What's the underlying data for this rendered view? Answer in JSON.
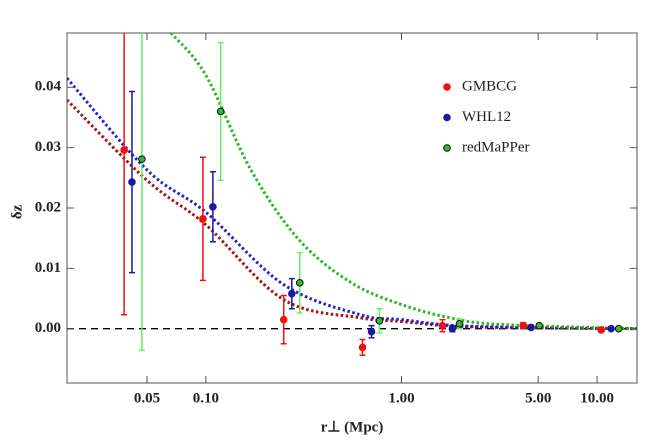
{
  "chart_data": {
    "type": "scatter",
    "x_label": "r⊥ (Mpc)",
    "y_label": "δz",
    "xscale": "log",
    "xlim": [
      0.0195,
      16
    ],
    "ylim": [
      -0.009,
      0.049
    ],
    "xticks": [
      {
        "value": 0.05,
        "label": "0.05"
      },
      {
        "value": 0.1,
        "label": "0.10"
      },
      {
        "value": 1,
        "label": "1.00"
      },
      {
        "value": 5,
        "label": "5.00"
      },
      {
        "value": 10,
        "label": "10.00"
      }
    ],
    "yticks": [
      {
        "value": 0,
        "label": "0.00"
      },
      {
        "value": 0.01,
        "label": "0.01"
      },
      {
        "value": 0.02,
        "label": "0.02"
      },
      {
        "value": 0.03,
        "label": "0.03"
      },
      {
        "value": 0.04,
        "label": "0.04"
      }
    ],
    "hline": 0,
    "legend": "upper right",
    "series": [
      {
        "name": "GMBCG",
        "color": "#ee1111",
        "edge": "#ee1111",
        "x": [
          0.0382,
          0.0966,
          0.25,
          0.632,
          1.62,
          4.19,
          10.5
        ],
        "values": [
          0.0296,
          0.0182,
          0.0015,
          -0.0031,
          0.0005,
          0.0005,
          -0.0002
        ],
        "errors": [
          0.0273,
          0.0102,
          0.004,
          0.0013,
          0.001,
          0.0005,
          0.0003
        ]
      },
      {
        "name": "WHL12",
        "color": "#1a1aa0",
        "edge": "#1a1aa0",
        "x": [
          0.0419,
          0.1086,
          0.275,
          0.703,
          1.82,
          4.6,
          11.8
        ],
        "values": [
          0.0243,
          0.0202,
          0.0058,
          -0.0005,
          0.0,
          0.0002,
          0.0
        ],
        "errors": [
          0.015,
          0.0058,
          0.0025,
          0.001,
          0.0005,
          0.0003,
          0.0002
        ]
      },
      {
        "name": "redMaPPer",
        "color": "#33bb33",
        "edge": "#111111",
        "bar_color": "#66ee66",
        "x": [
          0.0471,
          0.119,
          0.302,
          0.772,
          1.98,
          5.06,
          12.9
        ],
        "values": [
          0.0281,
          0.036,
          0.0076,
          0.0013,
          0.0008,
          0.0005,
          0.0
        ],
        "errors": [
          0.0317,
          0.0114,
          0.005,
          0.002,
          0.0008,
          0.0003,
          0.0002
        ]
      }
    ],
    "fits": [
      {
        "color": "#aa1111",
        "x": [
          0.0195,
          0.05,
          0.1,
          0.25,
          0.618,
          1,
          2.25,
          16
        ],
        "values": [
          0.0379,
          0.0246,
          0.0172,
          0.0048,
          0.0018,
          0.0012,
          0.0003,
          0
        ]
      },
      {
        "color": "#2222cc",
        "x": [
          0.0195,
          0.05,
          0.1,
          0.25,
          0.618,
          1,
          2.25,
          16
        ],
        "values": [
          0.0415,
          0.0263,
          0.0193,
          0.0073,
          0.0023,
          0.0015,
          0.0004,
          0
        ]
      },
      {
        "color": "#22bb22",
        "x": [
          0.0663,
          0.1,
          0.17,
          0.3,
          0.555,
          1,
          1.78,
          3.2,
          16
        ],
        "values": [
          0.049,
          0.042,
          0.0263,
          0.0147,
          0.0076,
          0.004,
          0.0018,
          0.0007,
          0
        ]
      }
    ]
  }
}
